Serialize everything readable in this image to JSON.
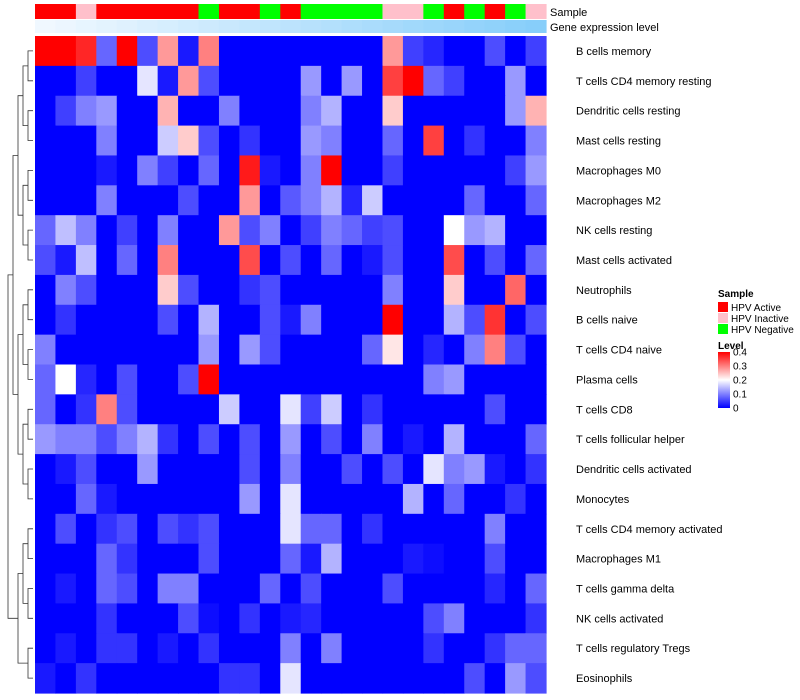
{
  "chart_data": {
    "type": "heatmap",
    "title": "",
    "annotations": {
      "sample": {
        "label": "Sample",
        "values": [
          "HPV Active",
          "HPV Active",
          "HPV Inactive",
          "HPV Active",
          "HPV Active",
          "HPV Active",
          "HPV Active",
          "HPV Active",
          "HPV Negative",
          "HPV Active",
          "HPV Active",
          "HPV Negative",
          "HPV Active",
          "HPV Negative",
          "HPV Negative",
          "HPV Negative",
          "HPV Negative",
          "HPV Inactive",
          "HPV Inactive",
          "HPV Negative",
          "HPV Active",
          "HPV Negative",
          "HPV Active",
          "HPV Negative",
          "HPV Inactive"
        ]
      },
      "gene_expression": {
        "label": "Gene expression level",
        "values": [
          0.02,
          0.04,
          0.06,
          0.08,
          0.1,
          0.12,
          0.14,
          0.16,
          0.18,
          0.2,
          0.22,
          0.24,
          0.26,
          0.28,
          0.3,
          0.32,
          0.34,
          0.36,
          0.38,
          0.4,
          0.42,
          0.44,
          0.46,
          0.48,
          0.5
        ]
      }
    },
    "rows": [
      "B cells memory",
      "T cells CD4 memory resting",
      "Dendritic cells resting",
      "Mast cells resting",
      "Macrophages M0",
      "Macrophages M2",
      "NK cells resting",
      "Mast cells activated",
      "Neutrophils",
      "B cells naive",
      "T cells CD4 naive",
      "Plasma cells",
      "T cells CD8",
      "T cells follicular helper",
      "Dendritic cells activated",
      "Monocytes",
      "T cells CD4 memory activated",
      "Macrophages M1",
      "T cells gamma delta",
      "NK cells activated",
      "T cells regulatory  Tregs",
      "Eosinophils"
    ],
    "values": [
      [
        0.4,
        0.4,
        0.37,
        0.08,
        0.4,
        0.06,
        0.28,
        0.02,
        0.3,
        0.0,
        0.0,
        0.0,
        0.0,
        0.0,
        0.0,
        0.0,
        0.0,
        0.28,
        0.05,
        0.03,
        0.0,
        0.0,
        0.06,
        0.0,
        0.05
      ],
      [
        0.0,
        0.0,
        0.05,
        0.0,
        0.0,
        0.18,
        0.02,
        0.28,
        0.06,
        0.0,
        0.0,
        0.0,
        0.0,
        0.12,
        0.0,
        0.12,
        0.0,
        0.35,
        0.4,
        0.08,
        0.05,
        0.0,
        0.0,
        0.12,
        0.0
      ],
      [
        0.0,
        0.05,
        0.1,
        0.12,
        0.0,
        0.0,
        0.26,
        0.0,
        0.0,
        0.1,
        0.0,
        0.0,
        0.0,
        0.1,
        0.14,
        0.0,
        0.0,
        0.24,
        0.0,
        0.0,
        0.0,
        0.0,
        0.0,
        0.12,
        0.26
      ],
      [
        0.0,
        0.0,
        0.0,
        0.1,
        0.0,
        0.0,
        0.16,
        0.24,
        0.06,
        0.0,
        0.04,
        0.0,
        0.0,
        0.12,
        0.1,
        0.0,
        0.0,
        0.08,
        0.0,
        0.35,
        0.0,
        0.04,
        0.0,
        0.0,
        0.1
      ],
      [
        0.0,
        0.0,
        0.0,
        0.02,
        0.0,
        0.1,
        0.05,
        0.0,
        0.08,
        0.0,
        0.38,
        0.02,
        0.0,
        0.1,
        0.4,
        0.0,
        0.0,
        0.05,
        0.0,
        0.0,
        0.0,
        0.0,
        0.0,
        0.05,
        0.12
      ],
      [
        0.0,
        0.0,
        0.0,
        0.1,
        0.0,
        0.0,
        0.0,
        0.06,
        0.0,
        0.0,
        0.28,
        0.0,
        0.07,
        0.1,
        0.14,
        0.03,
        0.16,
        0.0,
        0.0,
        0.0,
        0.0,
        0.08,
        0.0,
        0.0,
        0.08
      ],
      [
        0.08,
        0.15,
        0.1,
        0.0,
        0.05,
        0.0,
        0.1,
        0.0,
        0.0,
        0.28,
        0.06,
        0.1,
        0.0,
        0.05,
        0.1,
        0.08,
        0.05,
        0.06,
        0.0,
        0.0,
        0.2,
        0.12,
        0.14,
        0.0,
        0.0
      ],
      [
        0.06,
        0.02,
        0.15,
        0.0,
        0.08,
        0.0,
        0.3,
        0.0,
        0.0,
        0.0,
        0.34,
        0.0,
        0.06,
        0.0,
        0.08,
        0.0,
        0.02,
        0.06,
        0.0,
        0.0,
        0.34,
        0.0,
        0.06,
        0.0,
        0.08
      ],
      [
        0.0,
        0.1,
        0.06,
        0.0,
        0.0,
        0.0,
        0.24,
        0.06,
        0.0,
        0.0,
        0.04,
        0.06,
        0.0,
        0.0,
        0.0,
        0.0,
        0.0,
        0.1,
        0.0,
        0.0,
        0.24,
        0.0,
        0.0,
        0.32,
        0.0
      ],
      [
        0.0,
        0.04,
        0.0,
        0.0,
        0.0,
        0.0,
        0.06,
        0.0,
        0.14,
        0.0,
        0.0,
        0.06,
        0.02,
        0.1,
        0.0,
        0.0,
        0.0,
        0.4,
        0.0,
        0.0,
        0.14,
        0.06,
        0.36,
        0.0,
        0.06
      ],
      [
        0.1,
        0.0,
        0.0,
        0.0,
        0.0,
        0.0,
        0.0,
        0.0,
        0.12,
        0.0,
        0.12,
        0.06,
        0.0,
        0.0,
        0.0,
        0.0,
        0.08,
        0.22,
        0.0,
        0.03,
        0.0,
        0.1,
        0.3,
        0.06,
        0.0
      ],
      [
        0.08,
        0.2,
        0.03,
        0.0,
        0.06,
        0.0,
        0.0,
        0.06,
        0.4,
        0.0,
        0.0,
        0.0,
        0.0,
        0.0,
        0.0,
        0.0,
        0.0,
        0.0,
        0.0,
        0.1,
        0.12,
        0.0,
        0.0,
        0.0,
        0.0
      ],
      [
        0.08,
        0.0,
        0.04,
        0.3,
        0.06,
        0.0,
        0.0,
        0.0,
        0.0,
        0.16,
        0.0,
        0.0,
        0.18,
        0.05,
        0.16,
        0.0,
        0.04,
        0.0,
        0.0,
        0.0,
        0.0,
        0.0,
        0.06,
        0.0,
        0.0
      ],
      [
        0.12,
        0.1,
        0.1,
        0.06,
        0.1,
        0.14,
        0.04,
        0.0,
        0.06,
        0.0,
        0.06,
        0.0,
        0.12,
        0.0,
        0.06,
        0.0,
        0.1,
        0.0,
        0.02,
        0.0,
        0.14,
        0.0,
        0.0,
        0.0,
        0.08
      ],
      [
        0.0,
        0.02,
        0.06,
        0.0,
        0.0,
        0.12,
        0.0,
        0.0,
        0.0,
        0.0,
        0.06,
        0.0,
        0.1,
        0.0,
        0.0,
        0.06,
        0.0,
        0.06,
        0.0,
        0.18,
        0.1,
        0.12,
        0.02,
        0.0,
        0.04
      ],
      [
        0.0,
        0.0,
        0.08,
        0.02,
        0.0,
        0.0,
        0.0,
        0.0,
        0.0,
        0.0,
        0.12,
        0.0,
        0.18,
        0.0,
        0.0,
        0.0,
        0.0,
        0.0,
        0.14,
        0.0,
        0.08,
        0.0,
        0.0,
        0.04,
        0.0
      ],
      [
        0.0,
        0.06,
        0.0,
        0.04,
        0.06,
        0.0,
        0.06,
        0.04,
        0.06,
        0.0,
        0.0,
        0.0,
        0.18,
        0.08,
        0.08,
        0.0,
        0.04,
        0.0,
        0.0,
        0.0,
        0.0,
        0.0,
        0.1,
        0.0,
        0.0
      ],
      [
        0.0,
        0.0,
        0.0,
        0.08,
        0.04,
        0.0,
        0.0,
        0.0,
        0.06,
        0.0,
        0.0,
        0.0,
        0.08,
        0.02,
        0.14,
        0.0,
        0.0,
        0.0,
        0.02,
        0.01,
        0.0,
        0.0,
        0.06,
        0.0,
        0.0
      ],
      [
        0.0,
        0.02,
        0.0,
        0.08,
        0.06,
        0.0,
        0.1,
        0.1,
        0.0,
        0.0,
        0.0,
        0.08,
        0.0,
        0.06,
        0.0,
        0.0,
        0.0,
        0.06,
        0.0,
        0.0,
        0.0,
        0.0,
        0.03,
        0.0,
        0.08
      ],
      [
        0.0,
        0.0,
        0.0,
        0.04,
        0.0,
        0.0,
        0.0,
        0.06,
        0.01,
        0.0,
        0.04,
        0.0,
        0.02,
        0.03,
        0.0,
        0.0,
        0.0,
        0.0,
        0.0,
        0.06,
        0.1,
        0.0,
        0.0,
        0.0,
        0.04
      ],
      [
        0.0,
        0.02,
        0.0,
        0.04,
        0.04,
        0.0,
        0.02,
        0.0,
        0.04,
        0.0,
        0.0,
        0.0,
        0.1,
        0.0,
        0.1,
        0.0,
        0.0,
        0.0,
        0.0,
        0.04,
        0.0,
        0.0,
        0.04,
        0.08,
        0.08
      ],
      [
        0.02,
        0.0,
        0.04,
        0.0,
        0.0,
        0.0,
        0.0,
        0.0,
        0.0,
        0.04,
        0.04,
        0.0,
        0.18,
        0.0,
        0.0,
        0.0,
        0.0,
        0.0,
        0.0,
        0.0,
        0.0,
        0.06,
        0.0,
        0.12,
        0.06
      ]
    ],
    "color_scale": {
      "low": "#0000ff",
      "mid": "#ffffff",
      "high": "#ff0000",
      "min": 0,
      "max": 0.4
    },
    "sample_colors": {
      "HPV Active": "#ff0000",
      "HPV Inactive": "#ffc0cb",
      "HPV Negative": "#00ff00"
    },
    "gene_expression_colors": {
      "low": "#f0f8ff",
      "high": "#87cefa"
    },
    "legend": {
      "sample_title": "Sample",
      "sample_entries": [
        "HPV Active",
        "HPV Inactive",
        "HPV Negative"
      ],
      "level_title": "Level",
      "level_ticks": [
        {
          "value": 0.4,
          "label": "0.4"
        },
        {
          "value": 0.3,
          "label": "0.3"
        },
        {
          "value": 0.2,
          "label": "0.2"
        },
        {
          "value": 0.1,
          "label": "0.1"
        },
        {
          "value": 0.0,
          "label": "0"
        }
      ],
      "placement": "right"
    }
  }
}
